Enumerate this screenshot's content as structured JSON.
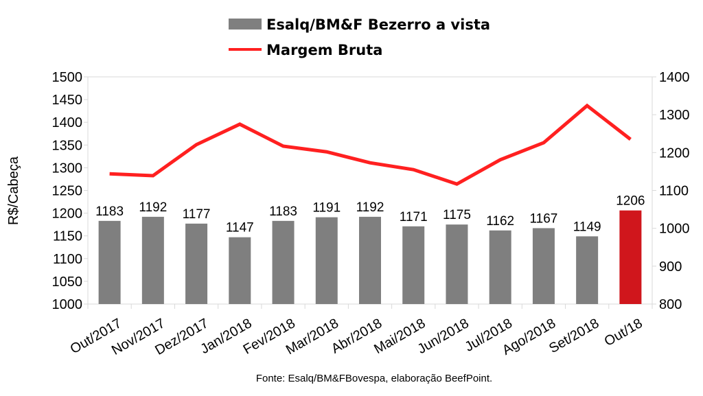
{
  "chart_data": {
    "type": "bar+line",
    "categories": [
      "Out/2017",
      "Nov/2017",
      "Dez/2017",
      "Jan/2018",
      "Fev/2018",
      "Mar/2018",
      "Abr/2018",
      "Mai/2018",
      "Jun/2018",
      "Jul/2018",
      "Ago/2018",
      "Set/2018",
      "Out/18"
    ],
    "series": [
      {
        "name": "Esalq/BM&F Bezerro a vista",
        "type": "bar",
        "axis": "left",
        "color": "#7f7f7f",
        "highlight_color": "#d0161c",
        "highlight_index": 12,
        "values": [
          1183,
          1192,
          1177,
          1147,
          1183,
          1191,
          1192,
          1171,
          1175,
          1162,
          1167,
          1149,
          1206
        ]
      },
      {
        "name": "Margem Bruta",
        "type": "line",
        "axis": "right",
        "color": "#ff2020",
        "values": [
          1144,
          1139,
          1221,
          1275,
          1217,
          1202,
          1173,
          1155,
          1117,
          1181,
          1226,
          1324,
          1235
        ]
      }
    ],
    "ylabel": "R$/Cabeça",
    "ylim": [
      1000,
      1500
    ],
    "yticks": [
      1000,
      1050,
      1100,
      1150,
      1200,
      1250,
      1300,
      1350,
      1400,
      1450,
      1500
    ],
    "y2lim": [
      800,
      1400
    ],
    "y2ticks": [
      800,
      900,
      1000,
      1100,
      1200,
      1300,
      1400
    ],
    "legend": "top",
    "source": "Fonte: Esalq/BM&FBovespa, elaboração BeefPoint."
  }
}
